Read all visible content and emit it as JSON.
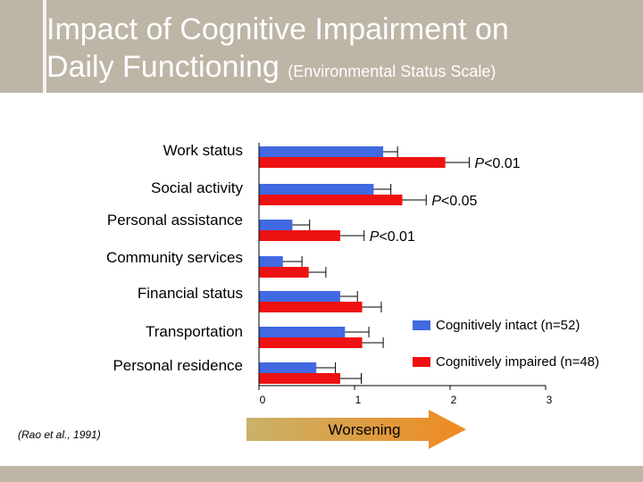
{
  "header": {
    "title_main_line1": "Impact of Cognitive Impairment on",
    "title_main_line2": "Daily Functioning",
    "title_sub": "(Environmental Status Scale)"
  },
  "citation": "(Rao et al., 1991)",
  "arrow_label": "Worsening",
  "colors": {
    "header": "#bdb5a6",
    "series_intact": "#4169e1",
    "series_impaired": "#ee1111",
    "arrow": "#e8902a"
  },
  "chart_data": {
    "type": "bar",
    "orientation": "horizontal",
    "categories": [
      "Work status",
      "Social activity",
      "Personal assistance",
      "Community services",
      "Financial status",
      "Transportation",
      "Personal residence"
    ],
    "series": [
      {
        "name": "Cognitively intact (n=52)",
        "color": "#4169e1",
        "values": [
          1.3,
          1.2,
          0.35,
          0.25,
          0.85,
          0.9,
          0.6
        ],
        "errors": [
          0.15,
          0.18,
          0.18,
          0.2,
          0.18,
          0.25,
          0.2
        ]
      },
      {
        "name": "Cognitively impaired (n=48)",
        "color": "#ee1111",
        "values": [
          1.95,
          1.5,
          0.85,
          0.52,
          1.08,
          1.08,
          0.85
        ],
        "errors": [
          0.25,
          0.25,
          0.25,
          0.18,
          0.2,
          0.22,
          0.22
        ]
      }
    ],
    "p_values": [
      "<0.01",
      "<0.05",
      "<0.01",
      "",
      "",
      "",
      ""
    ],
    "p_prefix": "P",
    "xlim": [
      0,
      3
    ],
    "xticks": [
      0,
      1,
      2,
      3
    ],
    "legend_position": "inside-right",
    "grid": false
  }
}
